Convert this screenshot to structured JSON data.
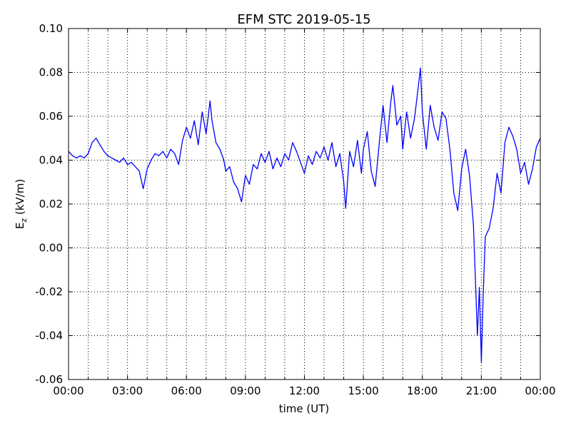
{
  "chart_data": {
    "type": "line",
    "title": "EFM STC    2019-05-15",
    "xlabel": "time (UT)",
    "ylabel": {
      "main": "E",
      "sub": "z",
      "unit": " (kV/m)"
    },
    "xlim": [
      0,
      24
    ],
    "xticks": [
      {
        "value": 0,
        "label": "00:00"
      },
      {
        "value": 3,
        "label": "03:00"
      },
      {
        "value": 6,
        "label": "06:00"
      },
      {
        "value": 9,
        "label": "09:00"
      },
      {
        "value": 12,
        "label": "12:00"
      },
      {
        "value": 15,
        "label": "15:00"
      },
      {
        "value": 18,
        "label": "18:00"
      },
      {
        "value": 21,
        "label": "21:00"
      },
      {
        "value": 24,
        "label": "00:00"
      }
    ],
    "xminorticks": [
      1,
      2,
      4,
      5,
      7,
      8,
      10,
      11,
      13,
      14,
      16,
      17,
      19,
      20,
      22,
      23
    ],
    "ylim": [
      -0.06,
      0.1
    ],
    "yticks": [
      {
        "value": -0.06,
        "label": "-0.06"
      },
      {
        "value": -0.04,
        "label": "-0.04"
      },
      {
        "value": -0.02,
        "label": "-0.02"
      },
      {
        "value": 0,
        "label": "0.00"
      },
      {
        "value": 0.02,
        "label": "0.02"
      },
      {
        "value": 0.04,
        "label": "0.04"
      },
      {
        "value": 0.06,
        "label": "0.06"
      },
      {
        "value": 0.08,
        "label": "0.08"
      },
      {
        "value": 0.1,
        "label": "0.10"
      }
    ],
    "grid": true,
    "series": [
      {
        "color": "#0000ff",
        "x": [
          0,
          0.2,
          0.4,
          0.6,
          0.8,
          1.0,
          1.2,
          1.4,
          1.6,
          1.8,
          2.0,
          2.2,
          2.4,
          2.6,
          2.8,
          3.0,
          3.2,
          3.4,
          3.6,
          3.8,
          4.0,
          4.2,
          4.4,
          4.6,
          4.8,
          5.0,
          5.2,
          5.4,
          5.6,
          5.8,
          6.0,
          6.2,
          6.4,
          6.6,
          6.8,
          7.0,
          7.2,
          7.3,
          7.5,
          7.7,
          7.9,
          8.0,
          8.2,
          8.4,
          8.6,
          8.8,
          9.0,
          9.2,
          9.4,
          9.6,
          9.8,
          10.0,
          10.2,
          10.4,
          10.6,
          10.8,
          11.0,
          11.2,
          11.4,
          11.6,
          11.8,
          12.0,
          12.2,
          12.4,
          12.6,
          12.8,
          13.0,
          13.2,
          13.4,
          13.6,
          13.8,
          14.0,
          14.1,
          14.3,
          14.5,
          14.7,
          14.9,
          15.0,
          15.2,
          15.4,
          15.6,
          15.8,
          16.0,
          16.2,
          16.4,
          16.5,
          16.7,
          16.9,
          17.0,
          17.2,
          17.4,
          17.6,
          17.8,
          17.9,
          18.0,
          18.2,
          18.4,
          18.6,
          18.8,
          19.0,
          19.2,
          19.4,
          19.6,
          19.8,
          20.0,
          20.2,
          20.4,
          20.6,
          20.8,
          20.9,
          21.0,
          21.1,
          21.2,
          21.4,
          21.6,
          21.8,
          22.0,
          22.2,
          22.4,
          22.6,
          22.8,
          23.0,
          23.2,
          23.4,
          23.6,
          23.8,
          24.0
        ],
        "values": [
          0.044,
          0.042,
          0.041,
          0.042,
          0.041,
          0.043,
          0.048,
          0.05,
          0.047,
          0.044,
          0.042,
          0.041,
          0.04,
          0.039,
          0.041,
          0.038,
          0.039,
          0.037,
          0.035,
          0.027,
          0.036,
          0.04,
          0.043,
          0.042,
          0.044,
          0.041,
          0.045,
          0.043,
          0.038,
          0.049,
          0.055,
          0.05,
          0.058,
          0.047,
          0.062,
          0.052,
          0.067,
          0.058,
          0.048,
          0.045,
          0.04,
          0.035,
          0.037,
          0.03,
          0.027,
          0.021,
          0.033,
          0.029,
          0.038,
          0.036,
          0.043,
          0.039,
          0.044,
          0.036,
          0.041,
          0.037,
          0.043,
          0.04,
          0.048,
          0.044,
          0.039,
          0.034,
          0.042,
          0.038,
          0.044,
          0.041,
          0.046,
          0.04,
          0.048,
          0.037,
          0.043,
          0.03,
          0.018,
          0.044,
          0.037,
          0.049,
          0.034,
          0.045,
          0.053,
          0.035,
          0.028,
          0.047,
          0.065,
          0.048,
          0.067,
          0.074,
          0.056,
          0.06,
          0.045,
          0.062,
          0.05,
          0.059,
          0.074,
          0.082,
          0.062,
          0.045,
          0.065,
          0.055,
          0.049,
          0.062,
          0.059,
          0.045,
          0.025,
          0.017,
          0.036,
          0.045,
          0.033,
          0.01,
          -0.04,
          -0.018,
          -0.052,
          -0.02,
          0.005,
          0.009,
          0.018,
          0.034,
          0.025,
          0.048,
          0.055,
          0.051,
          0.045,
          0.034,
          0.039,
          0.029,
          0.036,
          0.046,
          0.05
        ]
      }
    ]
  }
}
